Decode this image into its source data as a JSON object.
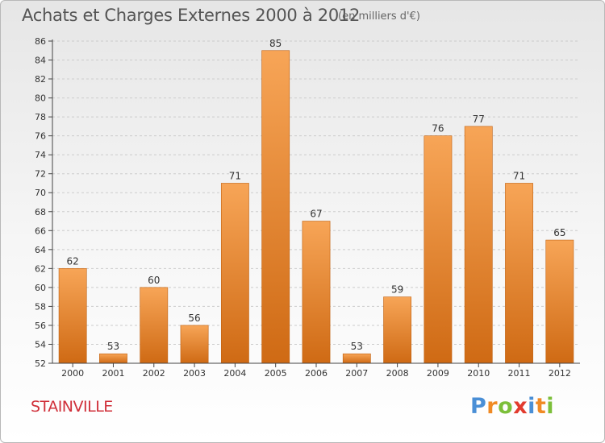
{
  "title": "Achats et Charges Externes 2000 à 2012",
  "subtitle": "(en milliers d'€)",
  "town": "STAINVILLE",
  "brand": {
    "letters": [
      "P",
      "r",
      "o",
      "x",
      "i",
      "t",
      "i"
    ],
    "colors": [
      "#4a8fd6",
      "#f08a24",
      "#7cbf3a",
      "#e23b2e",
      "#4a8fd6",
      "#f08a24",
      "#7cbf3a"
    ]
  },
  "colors": {
    "bar_top": "#f7a557",
    "bar_bottom": "#cf6a14",
    "axis": "#444444",
    "grid": "#cccccc",
    "text": "#333333"
  },
  "chart_data": {
    "type": "bar",
    "categories": [
      "2000",
      "2001",
      "2002",
      "2003",
      "2004",
      "2005",
      "2006",
      "2007",
      "2008",
      "2009",
      "2010",
      "2011",
      "2012"
    ],
    "values": [
      62,
      53,
      60,
      56,
      71,
      85,
      67,
      53,
      59,
      76,
      77,
      71,
      65
    ],
    "ylim": [
      52,
      86
    ],
    "yticks": [
      52,
      54,
      56,
      58,
      60,
      62,
      64,
      66,
      68,
      70,
      72,
      74,
      76,
      78,
      80,
      82,
      84,
      86
    ],
    "grid": "horizontal",
    "data_labels": true
  }
}
